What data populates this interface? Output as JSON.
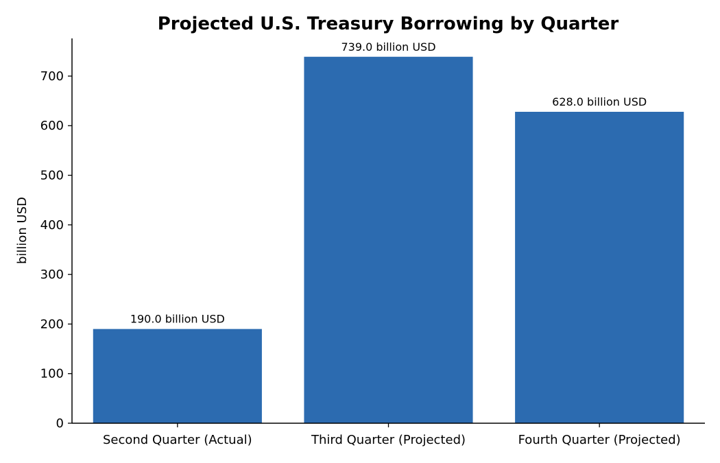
{
  "chart_data": {
    "type": "bar",
    "title": "Projected U.S. Treasury Borrowing by Quarter",
    "xlabel": "",
    "ylabel": "billion USD",
    "categories": [
      "Second Quarter (Actual)",
      "Third Quarter (Projected)",
      "Fourth Quarter (Projected)"
    ],
    "values": [
      190.0,
      739.0,
      628.0
    ],
    "data_labels": [
      "190.0 billion USD",
      "739.0 billion USD",
      "628.0 billion USD"
    ],
    "ylim": [
      0,
      776
    ],
    "yticks": [
      0,
      100,
      200,
      300,
      400,
      500,
      600,
      700
    ],
    "grid": false,
    "legend": "none",
    "bar_color": "#2c6bb0"
  }
}
